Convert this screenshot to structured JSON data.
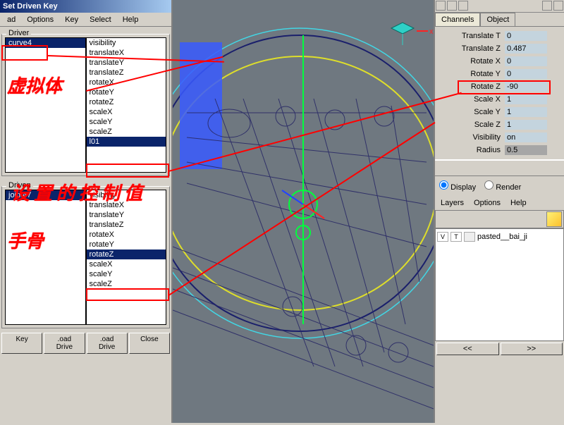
{
  "window_title": "Set Driven Key",
  "menus": {
    "load": "ad",
    "options": "Options",
    "key": "Key",
    "select": "Select",
    "help": "Help"
  },
  "driver": {
    "label": "Driver",
    "selected_object": "curve4",
    "attrs": [
      "visibility",
      "translateX",
      "translateY",
      "translateZ",
      "rotateX",
      "rotateY",
      "rotateZ",
      "scaleX",
      "scaleY",
      "scaleZ",
      "l01"
    ],
    "selected_attr": "l01"
  },
  "driven": {
    "label": "Driven",
    "selected_object": "joint47",
    "attrs": [
      "visibility",
      "translateX",
      "translateY",
      "translateZ",
      "rotateX",
      "rotateY",
      "rotateZ",
      "scaleX",
      "scaleY",
      "scaleZ"
    ],
    "selected_attr": "rotateZ"
  },
  "buttons": {
    "key": "Key",
    "load1": ".oad Drive",
    "load2": ".oad Drive",
    "close": "Close"
  },
  "channels": {
    "tab1": "Channels",
    "tab2": "Object",
    "rows": [
      {
        "label": "Translate T",
        "val": "0"
      },
      {
        "label": "Translate Z",
        "val": "0.487"
      },
      {
        "label": "Rotate X",
        "val": "0"
      },
      {
        "label": "Rotate Y",
        "val": "0"
      },
      {
        "label": "Rotate Z",
        "val": "-90",
        "hl": true
      },
      {
        "label": "Scale X",
        "val": "1"
      },
      {
        "label": "Scale Y",
        "val": "1"
      },
      {
        "label": "Scale Z",
        "val": "1"
      },
      {
        "label": "Visibility",
        "val": "on"
      },
      {
        "label": "Radius",
        "val": "0.5",
        "dark": true
      }
    ]
  },
  "layers": {
    "radio_display": "Display",
    "radio_render": "Render",
    "menu": {
      "layers": "Layers",
      "options": "Options",
      "help": "Help"
    },
    "item_name": "pasted__bai_ji",
    "v": "V",
    "t": "T"
  },
  "annotations": {
    "text1": "虚拟体",
    "text2": "设置的控制值",
    "text3": "手骨"
  },
  "viewport": {
    "bg": "#6f7880",
    "circle_cyan": "#42d6e4",
    "circle_yellow": "#dede2a",
    "circle_dark": "#1a1f6b",
    "wireframe": "#2a2a66",
    "manipulator_green": "#00ff3c",
    "manipulator_blue": "#2244ff",
    "manipulator_red": "#ff2222",
    "highlight": "#3a5aff"
  },
  "scroll": {
    "left": "<<",
    "right": ">>"
  }
}
